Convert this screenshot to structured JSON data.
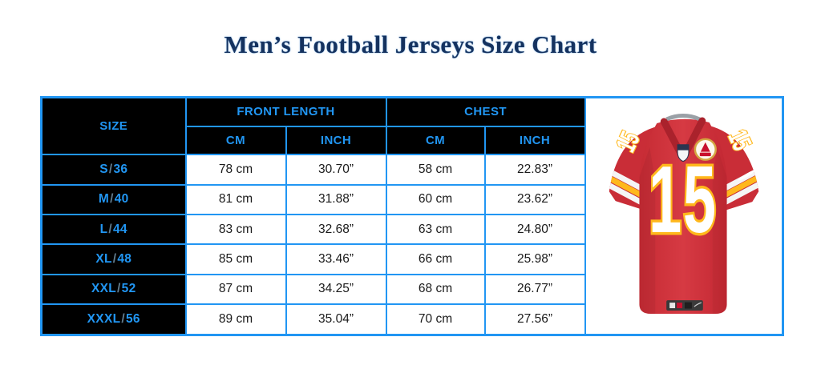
{
  "title": "Men’s Football Jerseys Size Chart",
  "colors": {
    "accent_blue": "#2196f3",
    "header_bg": "#000000",
    "title_navy": "#15325f",
    "slash_gray": "#627c8d",
    "jersey_red": "#d0323c",
    "jersey_gold": "#ffb81c"
  },
  "table": {
    "size_header": "SIZE",
    "front_length_header": "FRONT LENGTH",
    "chest_header": "CHEST",
    "sub_headers": {
      "front_cm": "CM",
      "front_inch": "INCH",
      "chest_cm": "CM",
      "chest_inch": "INCH"
    },
    "rows": [
      {
        "size": "S/36",
        "cells": [
          "78 cm",
          "30.70”",
          "58 cm",
          "22.83”"
        ]
      },
      {
        "size": "M/40",
        "cells": [
          "81 cm",
          "31.88”",
          "60 cm",
          "23.62”"
        ]
      },
      {
        "size": "L/44",
        "cells": [
          "83 cm",
          "32.68”",
          "63 cm",
          "24.80”"
        ]
      },
      {
        "size": "XL/48",
        "cells": [
          "85 cm",
          "33.46”",
          "66 cm",
          "25.98”"
        ]
      },
      {
        "size": "XXL/52",
        "cells": [
          "87 cm",
          "34.25”",
          "68 cm",
          "26.77”"
        ]
      },
      {
        "size": "XXXL/56",
        "cells": [
          "89 cm",
          "35.04”",
          "70 cm",
          "27.56”"
        ]
      }
    ]
  },
  "jersey": {
    "number": "15"
  },
  "chart_data": {
    "type": "table",
    "title": "Men’s Football Jerseys Size Chart",
    "columns": [
      "SIZE",
      "FRONT LENGTH (CM)",
      "FRONT LENGTH (INCH)",
      "CHEST (CM)",
      "CHEST (INCH)"
    ],
    "rows": [
      [
        "S/36",
        "78 cm",
        "30.70”",
        "58 cm",
        "22.83”"
      ],
      [
        "M/40",
        "81 cm",
        "31.88”",
        "60 cm",
        "23.62”"
      ],
      [
        "L/44",
        "83 cm",
        "32.68”",
        "63 cm",
        "24.80”"
      ],
      [
        "XL/48",
        "85 cm",
        "33.46”",
        "66 cm",
        "25.98”"
      ],
      [
        "XXL/52",
        "87 cm",
        "34.25”",
        "68 cm",
        "26.77”"
      ],
      [
        "XXXL/56",
        "89 cm",
        "35.04”",
        "70 cm",
        "27.56”"
      ]
    ]
  }
}
